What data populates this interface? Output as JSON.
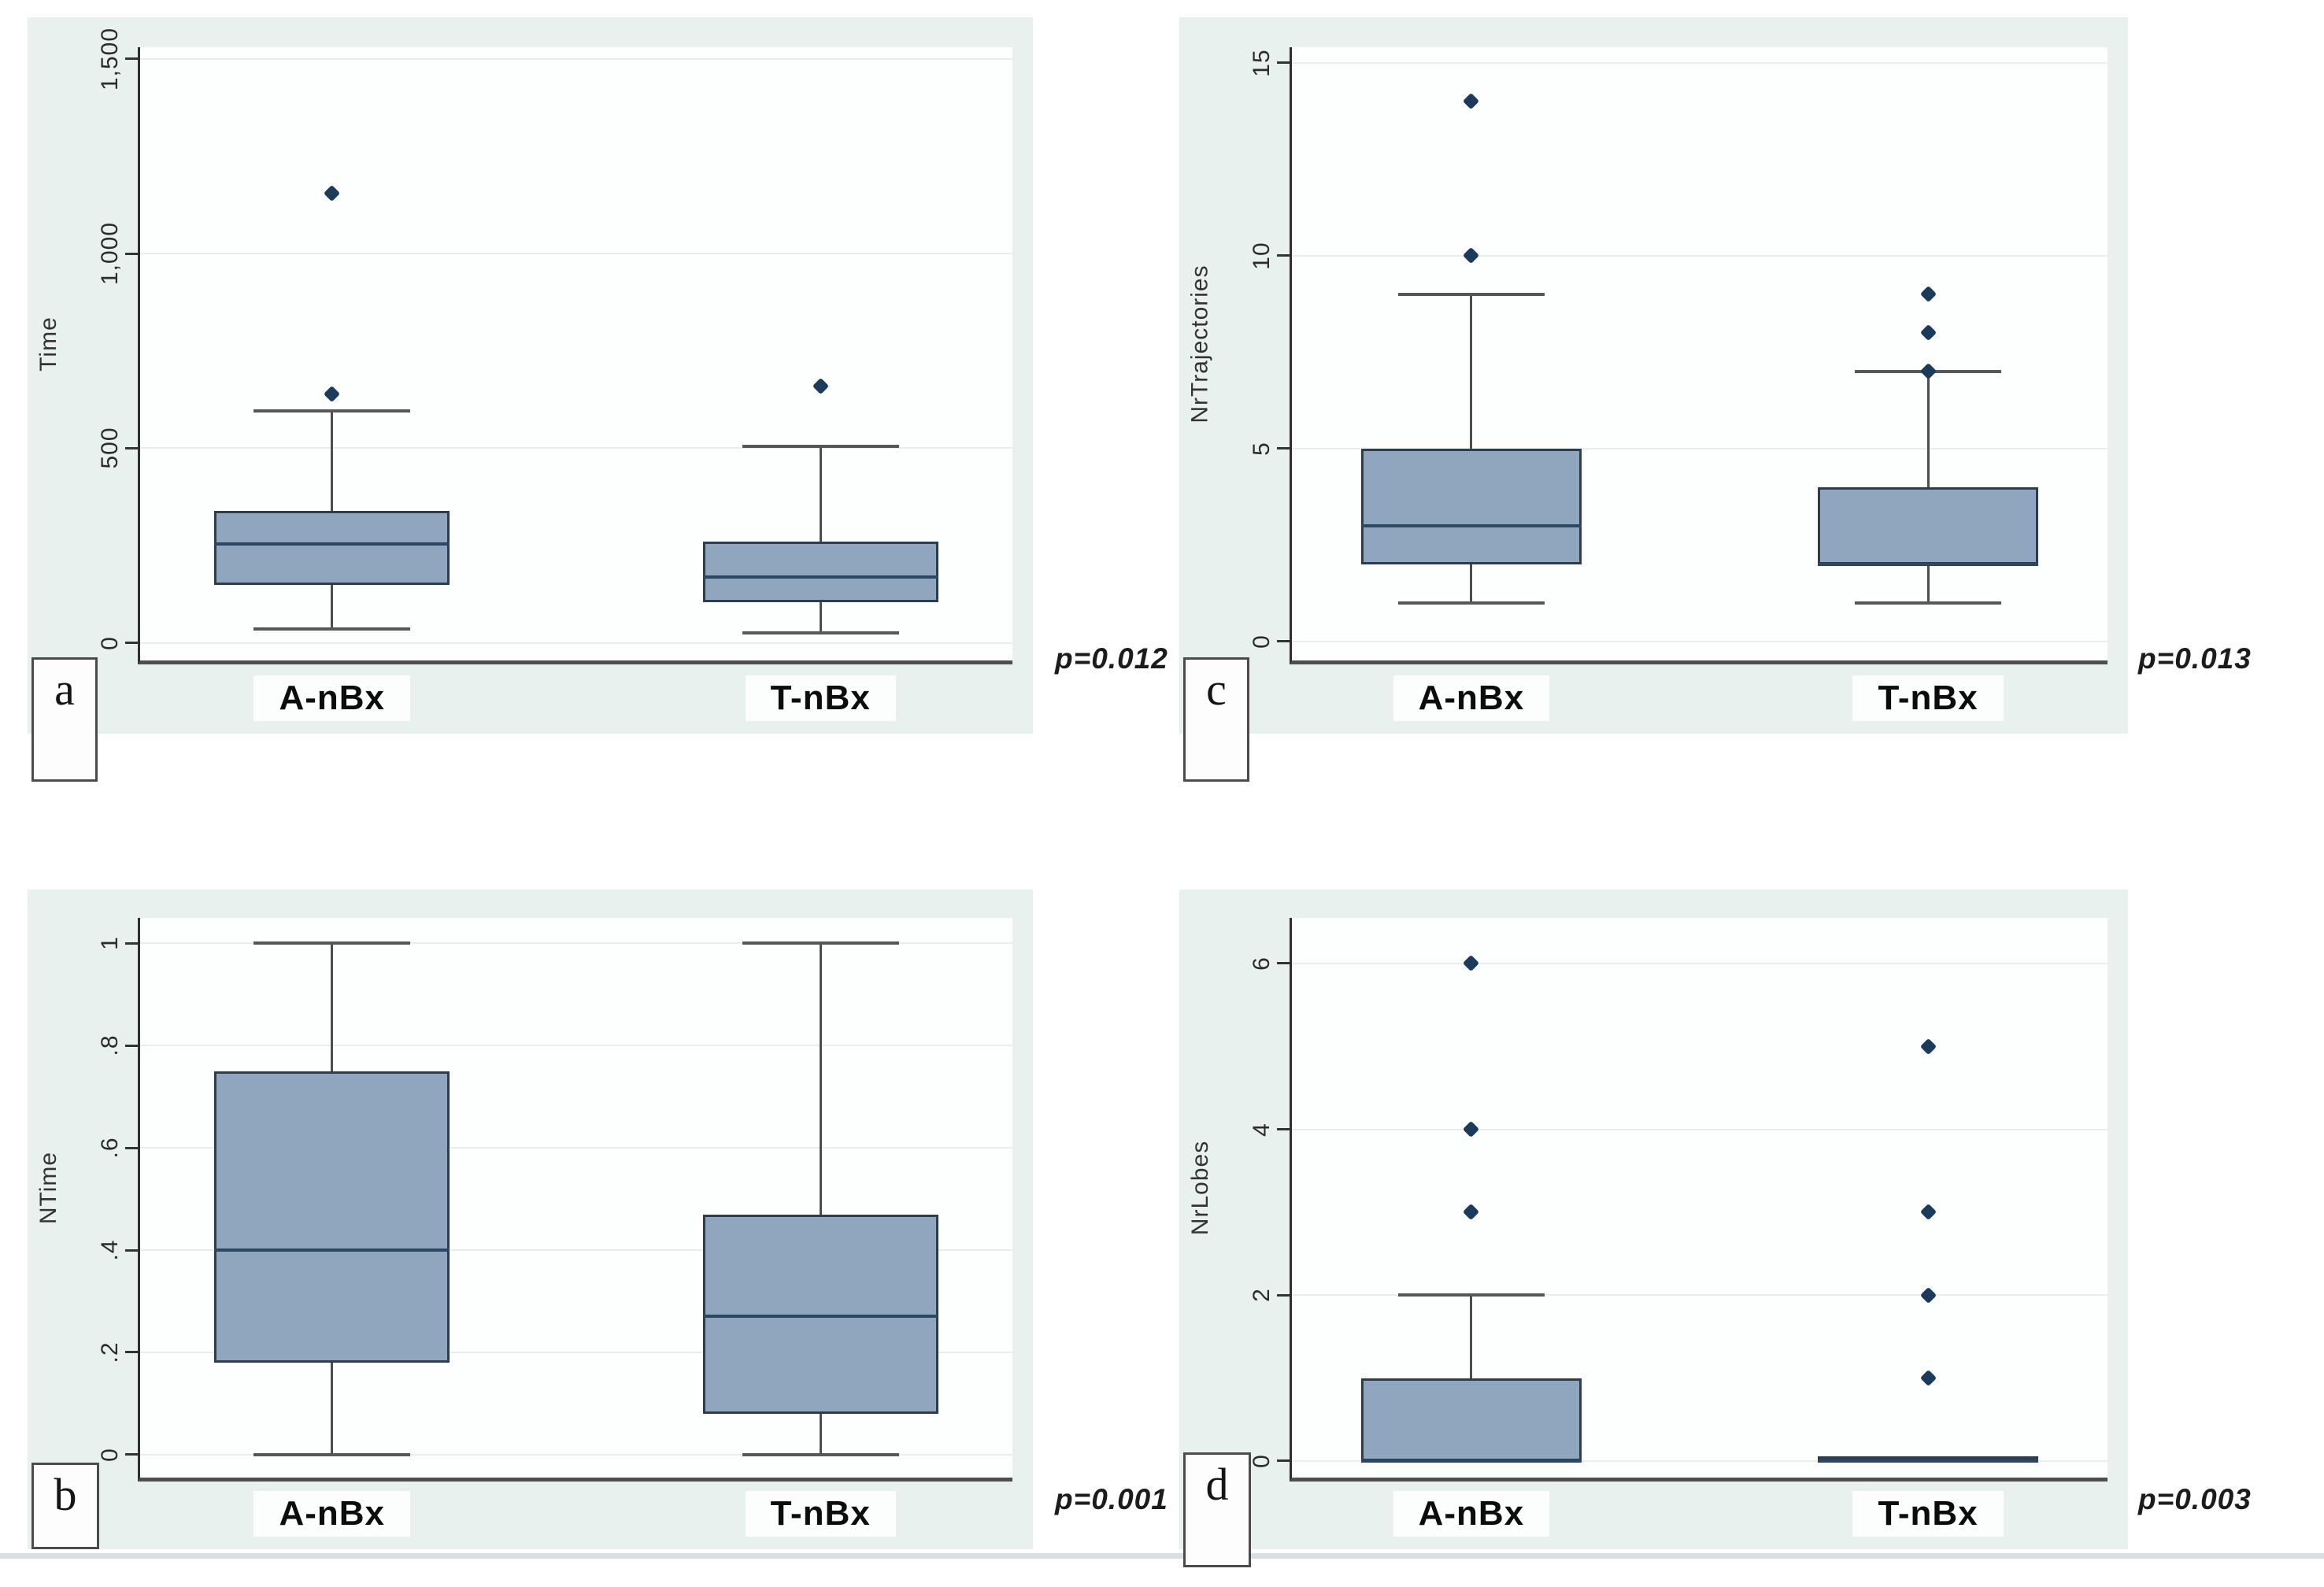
{
  "chart_data": {
    "type": "boxplot",
    "layout": {
      "grid_on": true,
      "group_centers": [
        0.22,
        0.78
      ],
      "box_width": 0.27,
      "cap_width": 0.18,
      "legend": "none"
    },
    "colors": {
      "box_fill": "#90a5be",
      "box_border": "#2d3d4e",
      "median_line": "#2b4764",
      "whisker": "#4d4d4d",
      "whisker_cap": "#575757",
      "outlier": "#1b3a5c",
      "panel_background": "#e8f1ed",
      "plot_background": "#fdfefe",
      "gridline": "#ececec",
      "axis_line": "#2e2e2e"
    },
    "panels": [
      {
        "letter": "a",
        "p_label": "p=0.012",
        "ylabel": "Time",
        "ylim": [
          -45,
          1530
        ],
        "yticks": [
          {
            "v": 0,
            "label": "0"
          },
          {
            "v": 500,
            "label": "500"
          },
          {
            "v": 1000,
            "label": "1,000"
          },
          {
            "v": 1500,
            "label": "1,500"
          }
        ],
        "groups": [
          {
            "label": "A-nBx",
            "whisker_low": 35,
            "q1": 150,
            "median": 255,
            "q3": 340,
            "whisker_high": 595,
            "outliers": [
              640,
              1155
            ]
          },
          {
            "label": "T-nBx",
            "whisker_low": 25,
            "q1": 105,
            "median": 170,
            "q3": 260,
            "whisker_high": 505,
            "outliers": [
              660
            ]
          }
        ]
      },
      {
        "letter": "c",
        "p_label": "p=0.013",
        "ylabel": "NrTrajectories",
        "ylim": [
          -0.5,
          15.4
        ],
        "yticks": [
          {
            "v": 0,
            "label": "0"
          },
          {
            "v": 5,
            "label": "5"
          },
          {
            "v": 10,
            "label": "10"
          },
          {
            "v": 15,
            "label": "15"
          }
        ],
        "groups": [
          {
            "label": "A-nBx",
            "whisker_low": 1,
            "q1": 2,
            "median": 3,
            "q3": 5,
            "whisker_high": 9,
            "outliers": [
              10,
              14
            ]
          },
          {
            "label": "T-nBx",
            "whisker_low": 1,
            "q1": 2,
            "median": 2,
            "q3": 4,
            "whisker_high": 7,
            "outliers": [
              7,
              8,
              9
            ]
          }
        ]
      },
      {
        "letter": "b",
        "p_label": "p=0.001",
        "ylabel": "NTime",
        "ylim": [
          -0.045,
          1.05
        ],
        "yticks": [
          {
            "v": 0,
            "label": "0"
          },
          {
            "v": 0.2,
            "label": ".2"
          },
          {
            "v": 0.4,
            "label": ".4"
          },
          {
            "v": 0.6,
            "label": ".6"
          },
          {
            "v": 0.8,
            "label": ".8"
          },
          {
            "v": 1,
            "label": "1"
          }
        ],
        "groups": [
          {
            "label": "A-nBx",
            "whisker_low": 0,
            "q1": 0.18,
            "median": 0.4,
            "q3": 0.75,
            "whisker_high": 1,
            "outliers": []
          },
          {
            "label": "T-nBx",
            "whisker_low": 0,
            "q1": 0.08,
            "median": 0.27,
            "q3": 0.47,
            "whisker_high": 1,
            "outliers": []
          }
        ]
      },
      {
        "letter": "d",
        "p_label": "p=0.003",
        "ylabel": "NrLobes",
        "ylim": [
          -0.2,
          6.55
        ],
        "yticks": [
          {
            "v": 0,
            "label": "0"
          },
          {
            "v": 2,
            "label": "2"
          },
          {
            "v": 4,
            "label": "4"
          },
          {
            "v": 6,
            "label": "6"
          }
        ],
        "groups": [
          {
            "label": "A-nBx",
            "whisker_low": 0,
            "q1": 0,
            "median": 0,
            "q3": 1,
            "whisker_high": 2,
            "outliers": [
              3,
              4,
              6
            ]
          },
          {
            "label": "T-nBx",
            "whisker_low": 0,
            "q1": 0,
            "median": 0,
            "q3": 0,
            "whisker_high": 0,
            "outliers": [
              1,
              2,
              3,
              5
            ]
          }
        ]
      }
    ]
  }
}
